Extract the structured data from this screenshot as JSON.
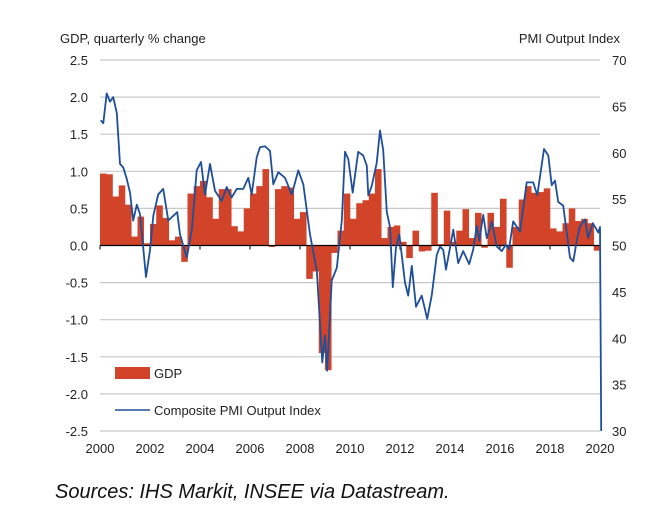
{
  "chart_data": {
    "type": "bar+line",
    "left_axis_title": "GDP, quarterly % change",
    "right_axis_title": "PMI Output  Index",
    "left_ylim": [
      -2.5,
      2.5
    ],
    "right_ylim": [
      30,
      70
    ],
    "left_ticks": [
      "2.5",
      "2.0",
      "1.5",
      "1.0",
      "0.5",
      "0.0",
      "-0.5",
      "-1.0",
      "-1.5",
      "-2.0",
      "-2.5"
    ],
    "right_ticks": [
      "70",
      "65",
      "60",
      "55",
      "50",
      "45",
      "40",
      "35",
      "30"
    ],
    "x_ticks": [
      "2000",
      "2002",
      "2004",
      "2006",
      "2008",
      "2010",
      "2012",
      "2014",
      "2016",
      "2018",
      "2020"
    ],
    "xlim": [
      2000,
      2020
    ],
    "grid": true,
    "legend": [
      "GDP",
      "Composite PMI Output Index"
    ],
    "legend_position": "bottom-left",
    "colors": {
      "gdp": "#d1442a",
      "pmi": "#1f4e9a"
    },
    "gdp_start_quarter": "2000Q1",
    "gdp": [
      0.97,
      0.96,
      0.66,
      0.81,
      0.55,
      0.12,
      0.39,
      0.03,
      0.29,
      0.54,
      0.37,
      0.07,
      0.12,
      -0.22,
      0.7,
      0.8,
      0.87,
      0.65,
      0.36,
      0.76,
      0.76,
      0.26,
      0.19,
      0.5,
      0.7,
      0.8,
      1.03,
      -0.02,
      0.76,
      0.8,
      0.78,
      0.36,
      0.45,
      -0.45,
      -0.35,
      -1.45,
      -1.68,
      -0.1,
      0.2,
      0.7,
      0.36,
      0.57,
      0.61,
      0.7,
      1.03,
      0.1,
      0.25,
      0.27,
      0.05,
      -0.17,
      0.2,
      -0.08,
      -0.07,
      0.71,
      0.02,
      0.47,
      0.05,
      0.2,
      0.49,
      0.1,
      0.44,
      -0.03,
      0.44,
      0.25,
      0.63,
      -0.3,
      0.25,
      0.62,
      0.8,
      0.71,
      0.72,
      0.77,
      0.23,
      0.19,
      0.3,
      0.5,
      0.33,
      0.36,
      0.3,
      -0.07
    ],
    "pmi": [
      [
        2000.03,
        63.5
      ],
      [
        2000.13,
        63.2
      ],
      [
        2000.27,
        66.4
      ],
      [
        2000.4,
        65.5
      ],
      [
        2000.53,
        66.0
      ],
      [
        2000.67,
        64.3
      ],
      [
        2000.8,
        58.8
      ],
      [
        2000.93,
        58.4
      ],
      [
        2001.07,
        57.2
      ],
      [
        2001.2,
        55.7
      ],
      [
        2001.33,
        52.7
      ],
      [
        2001.47,
        54.4
      ],
      [
        2001.6,
        53.4
      ],
      [
        2001.84,
        46.6
      ],
      [
        2002.0,
        49.5
      ],
      [
        2002.13,
        53.2
      ],
      [
        2002.33,
        55.5
      ],
      [
        2002.53,
        56.1
      ],
      [
        2002.73,
        52.7
      ],
      [
        2002.93,
        53.2
      ],
      [
        2003.09,
        53.6
      ],
      [
        2003.2,
        51.2
      ],
      [
        2003.47,
        48.7
      ],
      [
        2003.67,
        51.7
      ],
      [
        2003.87,
        58.1
      ],
      [
        2004.04,
        59.0
      ],
      [
        2004.2,
        55.5
      ],
      [
        2004.4,
        58.8
      ],
      [
        2004.6,
        55.9
      ],
      [
        2004.87,
        54.8
      ],
      [
        2005.07,
        56.3
      ],
      [
        2005.27,
        55.2
      ],
      [
        2005.47,
        56.1
      ],
      [
        2005.73,
        56.1
      ],
      [
        2005.93,
        57.3
      ],
      [
        2006.07,
        55.5
      ],
      [
        2006.27,
        59.5
      ],
      [
        2006.4,
        60.6
      ],
      [
        2006.6,
        60.7
      ],
      [
        2006.8,
        60.2
      ],
      [
        2006.93,
        56.6
      ],
      [
        2007.13,
        57.9
      ],
      [
        2007.4,
        57.3
      ],
      [
        2007.67,
        55.5
      ],
      [
        2007.93,
        58.1
      ],
      [
        2008.13,
        56.6
      ],
      [
        2008.4,
        51.2
      ],
      [
        2008.67,
        47.3
      ],
      [
        2008.89,
        37.4
      ],
      [
        2009.0,
        40.3
      ],
      [
        2009.09,
        36.5
      ],
      [
        2009.27,
        46.2
      ],
      [
        2009.47,
        47.6
      ],
      [
        2009.67,
        52.7
      ],
      [
        2009.8,
        60.1
      ],
      [
        2009.93,
        59.3
      ],
      [
        2010.11,
        55.7
      ],
      [
        2010.33,
        60.1
      ],
      [
        2010.53,
        59.7
      ],
      [
        2010.67,
        58.6
      ],
      [
        2010.73,
        55.4
      ],
      [
        2010.87,
        56.4
      ],
      [
        2011.07,
        58.9
      ],
      [
        2011.2,
        62.4
      ],
      [
        2011.33,
        60.3
      ],
      [
        2011.47,
        53.6
      ],
      [
        2011.6,
        52.0
      ],
      [
        2011.71,
        45.5
      ],
      [
        2011.84,
        49.8
      ],
      [
        2011.97,
        51.2
      ],
      [
        2012.2,
        46.0
      ],
      [
        2012.33,
        44.6
      ],
      [
        2012.47,
        47.8
      ],
      [
        2012.64,
        43.4
      ],
      [
        2012.87,
        44.6
      ],
      [
        2013.09,
        42.1
      ],
      [
        2013.27,
        44.6
      ],
      [
        2013.47,
        49.0
      ],
      [
        2013.6,
        49.9
      ],
      [
        2013.73,
        49.5
      ],
      [
        2013.84,
        47.4
      ],
      [
        2014.13,
        51.7
      ],
      [
        2014.33,
        48.1
      ],
      [
        2014.53,
        49.4
      ],
      [
        2014.77,
        48.0
      ],
      [
        2014.93,
        49.6
      ],
      [
        2015.07,
        52.1
      ],
      [
        2015.17,
        50.5
      ],
      [
        2015.33,
        53.3
      ],
      [
        2015.47,
        50.8
      ],
      [
        2015.67,
        52.6
      ],
      [
        2015.87,
        49.9
      ],
      [
        2016.07,
        49.4
      ],
      [
        2016.24,
        50.1
      ],
      [
        2016.36,
        49.6
      ],
      [
        2016.53,
        52.6
      ],
      [
        2016.8,
        51.5
      ],
      [
        2017.07,
        56.8
      ],
      [
        2017.33,
        56.8
      ],
      [
        2017.49,
        55.4
      ],
      [
        2017.76,
        60.4
      ],
      [
        2017.93,
        59.7
      ],
      [
        2018.07,
        56.5
      ],
      [
        2018.2,
        57.0
      ],
      [
        2018.33,
        54.7
      ],
      [
        2018.53,
        54.3
      ],
      [
        2018.8,
        48.7
      ],
      [
        2018.93,
        48.3
      ],
      [
        2019.07,
        50.5
      ],
      [
        2019.2,
        52.1
      ],
      [
        2019.4,
        52.8
      ],
      [
        2019.53,
        50.8
      ],
      [
        2019.71,
        52.4
      ],
      [
        2019.93,
        51.4
      ],
      [
        2020.0,
        52.0
      ],
      [
        2020.05,
        30.0
      ]
    ]
  },
  "source": "Sources: IHS Markit, INSEE via Datastream."
}
